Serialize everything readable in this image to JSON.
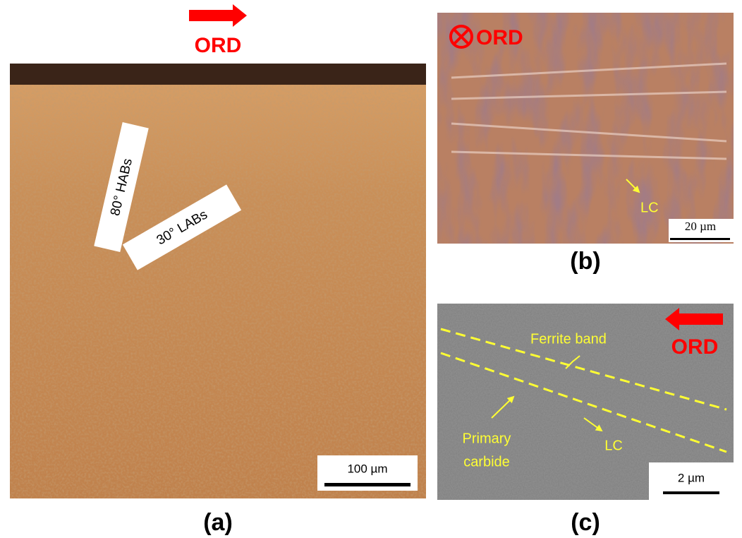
{
  "panels": [
    {
      "label": "(a)",
      "orientation": "ORD",
      "annotations": [
        "80° HABs",
        "30° LABs"
      ],
      "scale_bar": "100 µm"
    },
    {
      "label": "(b)",
      "orientation": "ORD",
      "annotations": [
        "LC"
      ],
      "scale_bar": "20 µm"
    },
    {
      "label": "(c)",
      "orientation": "ORD",
      "annotations": [
        "Ferrite band",
        "Primary",
        "carbide",
        "LC"
      ],
      "scale_bar": "2 µm"
    }
  ]
}
